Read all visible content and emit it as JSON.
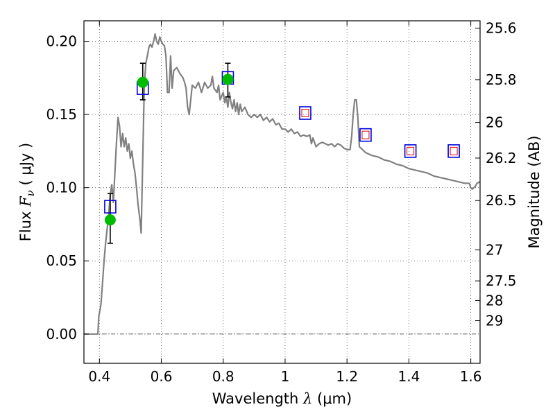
{
  "chart_data": {
    "type": "scatter",
    "title": "",
    "xlabel": {
      "prefix": "Wavelength  ",
      "symbol": "λ",
      "unit": " (μm)"
    },
    "ylabel": {
      "prefix": "Flux  ",
      "symbol": "F",
      "subscript": "ν",
      "unit": "  ( μJy )"
    },
    "y2label": "Magnitude (AB)",
    "xlim": [
      0.35,
      1.63
    ],
    "ylim": [
      -0.02,
      0.214
    ],
    "x_ticks": [
      0.4,
      0.6,
      0.8,
      1.0,
      1.2,
      1.4,
      1.6
    ],
    "x_tick_labels": [
      "0.4",
      "0.6",
      "0.8",
      "1",
      "1.2",
      "1.4",
      "1.6"
    ],
    "y_ticks": [
      0.0,
      0.05,
      0.1,
      0.15,
      0.2
    ],
    "y_tick_labels": [
      "0.00",
      "0.05",
      "0.10",
      "0.15",
      "0.20"
    ],
    "y2_ticks": [
      25.6,
      25.8,
      26,
      26.2,
      26.5,
      27,
      27.5,
      28,
      29
    ],
    "y2_tick_labels": [
      "25.6",
      "25.8",
      "26",
      "26.2",
      "26.5",
      "27",
      "27.5",
      "28",
      "29"
    ],
    "grid": true,
    "colors": {
      "sed": "#808080",
      "observed": "#00bb00",
      "model_box": "#0000dd",
      "model_inner": "#dd0000",
      "zero_line": "#555555"
    },
    "series": [
      {
        "kind": "line",
        "points": [
          [
            0.35,
            0.0
          ],
          [
            0.37,
            0.0
          ],
          [
            0.39,
            0.0
          ],
          [
            0.395,
            0.0
          ],
          [
            0.398,
            0.012
          ],
          [
            0.405,
            0.02
          ],
          [
            0.41,
            0.035
          ],
          [
            0.415,
            0.05
          ],
          [
            0.42,
            0.062
          ],
          [
            0.425,
            0.072
          ],
          [
            0.43,
            0.082
          ],
          [
            0.435,
            0.095
          ],
          [
            0.44,
            0.102
          ],
          [
            0.445,
            0.09
          ],
          [
            0.45,
            0.11
          ],
          [
            0.455,
            0.13
          ],
          [
            0.46,
            0.148
          ],
          [
            0.465,
            0.142
          ],
          [
            0.47,
            0.128
          ],
          [
            0.475,
            0.137
          ],
          [
            0.48,
            0.128
          ],
          [
            0.485,
            0.134
          ],
          [
            0.49,
            0.125
          ],
          [
            0.495,
            0.13
          ],
          [
            0.5,
            0.12
          ],
          [
            0.505,
            0.125
          ],
          [
            0.51,
            0.116
          ],
          [
            0.515,
            0.11
          ],
          [
            0.52,
            0.1
          ],
          [
            0.525,
            0.088
          ],
          [
            0.53,
            0.08
          ],
          [
            0.535,
            0.069
          ],
          [
            0.54,
            0.12
          ],
          [
            0.545,
            0.17
          ],
          [
            0.55,
            0.185
          ],
          [
            0.555,
            0.19
          ],
          [
            0.56,
            0.196
          ],
          [
            0.565,
            0.198
          ],
          [
            0.57,
            0.196
          ],
          [
            0.575,
            0.2
          ],
          [
            0.58,
            0.205
          ],
          [
            0.585,
            0.2
          ],
          [
            0.59,
            0.198
          ],
          [
            0.595,
            0.203
          ],
          [
            0.6,
            0.2
          ],
          [
            0.605,
            0.198
          ],
          [
            0.61,
            0.197
          ],
          [
            0.615,
            0.19
          ],
          [
            0.62,
            0.165
          ],
          [
            0.625,
            0.165
          ],
          [
            0.63,
            0.19
          ],
          [
            0.635,
            0.168
          ],
          [
            0.64,
            0.18
          ],
          [
            0.65,
            0.182
          ],
          [
            0.66,
            0.178
          ],
          [
            0.67,
            0.175
          ],
          [
            0.675,
            0.172
          ],
          [
            0.68,
            0.168
          ],
          [
            0.685,
            0.155
          ],
          [
            0.69,
            0.15
          ],
          [
            0.7,
            0.17
          ],
          [
            0.71,
            0.168
          ],
          [
            0.72,
            0.172
          ],
          [
            0.73,
            0.165
          ],
          [
            0.74,
            0.172
          ],
          [
            0.75,
            0.168
          ],
          [
            0.76,
            0.17
          ],
          [
            0.765,
            0.176
          ],
          [
            0.77,
            0.168
          ],
          [
            0.78,
            0.165
          ],
          [
            0.785,
            0.17
          ],
          [
            0.79,
            0.16
          ],
          [
            0.8,
            0.165
          ],
          [
            0.805,
            0.158
          ],
          [
            0.81,
            0.162
          ],
          [
            0.815,
            0.155
          ],
          [
            0.82,
            0.165
          ],
          [
            0.825,
            0.158
          ],
          [
            0.83,
            0.154
          ],
          [
            0.835,
            0.16
          ],
          [
            0.84,
            0.152
          ],
          [
            0.845,
            0.158
          ],
          [
            0.85,
            0.15
          ],
          [
            0.855,
            0.157
          ],
          [
            0.86,
            0.152
          ],
          [
            0.87,
            0.155
          ],
          [
            0.88,
            0.15
          ],
          [
            0.89,
            0.148
          ],
          [
            0.9,
            0.15
          ],
          [
            0.91,
            0.148
          ],
          [
            0.92,
            0.15
          ],
          [
            0.93,
            0.146
          ],
          [
            0.94,
            0.148
          ],
          [
            0.95,
            0.145
          ],
          [
            0.96,
            0.147
          ],
          [
            0.97,
            0.143
          ],
          [
            0.98,
            0.144
          ],
          [
            0.99,
            0.14
          ],
          [
            1.0,
            0.14
          ],
          [
            1.01,
            0.138
          ],
          [
            1.02,
            0.14
          ],
          [
            1.03,
            0.137
          ],
          [
            1.04,
            0.138
          ],
          [
            1.05,
            0.135
          ],
          [
            1.06,
            0.136
          ],
          [
            1.07,
            0.135
          ],
          [
            1.08,
            0.136
          ],
          [
            1.085,
            0.13
          ],
          [
            1.09,
            0.134
          ],
          [
            1.1,
            0.128
          ],
          [
            1.11,
            0.13
          ],
          [
            1.12,
            0.131
          ],
          [
            1.13,
            0.13
          ],
          [
            1.14,
            0.129
          ],
          [
            1.15,
            0.13
          ],
          [
            1.16,
            0.128
          ],
          [
            1.17,
            0.13
          ],
          [
            1.18,
            0.129
          ],
          [
            1.19,
            0.127
          ],
          [
            1.2,
            0.126
          ],
          [
            1.21,
            0.126
          ],
          [
            1.215,
            0.135
          ],
          [
            1.22,
            0.15
          ],
          [
            1.225,
            0.16
          ],
          [
            1.23,
            0.16
          ],
          [
            1.235,
            0.148
          ],
          [
            1.24,
            0.128
          ],
          [
            1.25,
            0.126
          ],
          [
            1.26,
            0.124
          ],
          [
            1.28,
            0.122
          ],
          [
            1.3,
            0.121
          ],
          [
            1.32,
            0.119
          ],
          [
            1.34,
            0.118
          ],
          [
            1.36,
            0.116
          ],
          [
            1.38,
            0.115
          ],
          [
            1.4,
            0.113
          ],
          [
            1.42,
            0.112
          ],
          [
            1.44,
            0.111
          ],
          [
            1.46,
            0.11
          ],
          [
            1.48,
            0.108
          ],
          [
            1.5,
            0.107
          ],
          [
            1.52,
            0.106
          ],
          [
            1.54,
            0.105
          ],
          [
            1.56,
            0.104
          ],
          [
            1.58,
            0.103
          ],
          [
            1.595,
            0.103
          ],
          [
            1.6,
            0.1
          ],
          [
            1.605,
            0.099
          ],
          [
            1.61,
            0.1
          ],
          [
            1.615,
            0.101
          ],
          [
            1.62,
            0.103
          ],
          [
            1.63,
            0.104
          ]
        ]
      },
      {
        "kind": "observed",
        "points": [
          {
            "x": 0.435,
            "y": 0.078,
            "yerr_low": 0.062,
            "yerr_high": 0.096
          },
          {
            "x": 0.54,
            "y": 0.172,
            "yerr_low": 0.16,
            "yerr_high": 0.185
          },
          {
            "x": 0.815,
            "y": 0.174,
            "yerr_low": 0.162,
            "yerr_high": 0.185
          }
        ]
      },
      {
        "kind": "model",
        "points": [
          {
            "x": 0.435,
            "y": 0.087,
            "inner": false
          },
          {
            "x": 0.54,
            "y": 0.168,
            "inner": false
          },
          {
            "x": 0.815,
            "y": 0.175,
            "inner": false
          },
          {
            "x": 1.065,
            "y": 0.151,
            "inner": true
          },
          {
            "x": 1.26,
            "y": 0.136,
            "inner": true
          },
          {
            "x": 1.405,
            "y": 0.125,
            "inner": true
          },
          {
            "x": 1.545,
            "y": 0.125,
            "inner": true
          }
        ]
      }
    ]
  }
}
